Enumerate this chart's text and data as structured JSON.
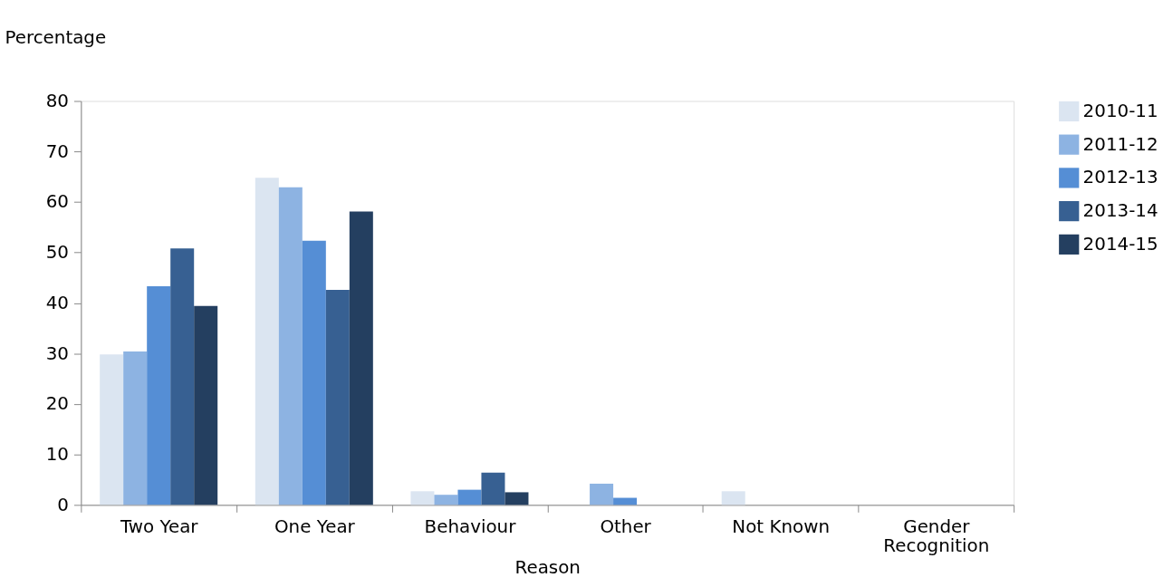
{
  "chart_data": {
    "type": "bar",
    "xlabel": "Reason",
    "ylabel": "Percentage",
    "categories": [
      "Two Year",
      "One Year",
      "Behaviour",
      "Other",
      "Not Known",
      "Gender Recognition"
    ],
    "series": [
      {
        "name": "2010-11",
        "color": "#dbe5f1",
        "values": [
          29.8,
          64.8,
          2.7,
          0,
          2.7,
          0
        ]
      },
      {
        "name": "2011-12",
        "color": "#8db3e2",
        "values": [
          30.4,
          62.9,
          2.0,
          4.2,
          0,
          0
        ]
      },
      {
        "name": "2012-13",
        "color": "#558ed5",
        "values": [
          43.3,
          52.3,
          3.0,
          1.4,
          0,
          0
        ]
      },
      {
        "name": "2013-14",
        "color": "#376092",
        "values": [
          50.8,
          42.6,
          6.4,
          0,
          0,
          0
        ]
      },
      {
        "name": "2014-15",
        "color": "#243f60",
        "values": [
          39.4,
          58.1,
          2.5,
          0,
          0,
          0
        ]
      }
    ],
    "ylim": [
      0,
      80
    ],
    "yticks": [
      0,
      10,
      20,
      30,
      40,
      50,
      60,
      70,
      80
    ],
    "grid": false,
    "legend": "right"
  }
}
